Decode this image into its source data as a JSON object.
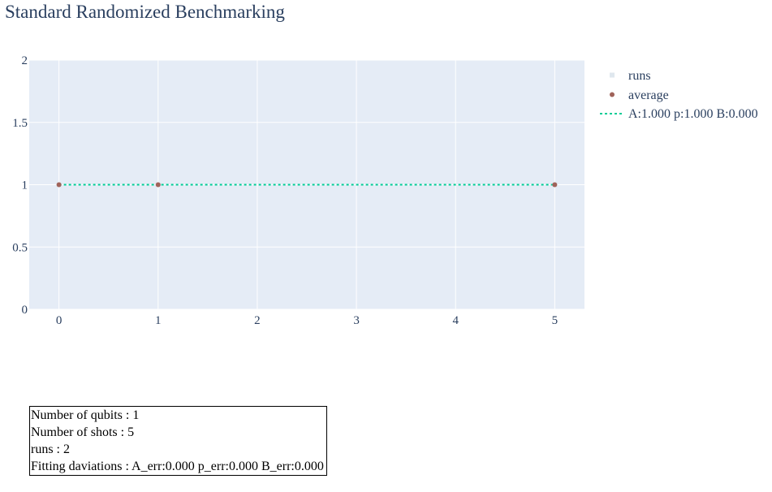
{
  "title": "Standard Randomized Benchmarking",
  "chart_data": {
    "type": "scatter",
    "title": "Standard Randomized Benchmarking",
    "xlabel": "",
    "ylabel": "",
    "xlim": [
      -0.3,
      5.3
    ],
    "ylim": [
      0,
      2
    ],
    "x_ticks": [
      0,
      1,
      2,
      3,
      4,
      5
    ],
    "y_ticks": [
      0,
      0.5,
      1,
      1.5,
      2
    ],
    "y_tick_labels": [
      "0",
      "0.5",
      "1",
      "1.5",
      "2"
    ],
    "grid": true,
    "legend_position": "top-right outside",
    "series": [
      {
        "name": "runs",
        "mode": "markers",
        "color": "#dfe7ee",
        "x": [
          0,
          0,
          1,
          1,
          5,
          5
        ],
        "y": [
          1,
          1,
          1,
          1,
          1,
          1
        ]
      },
      {
        "name": "average",
        "mode": "markers",
        "color": "#a0635a",
        "x": [
          0,
          1,
          5
        ],
        "y": [
          1,
          1,
          1
        ]
      },
      {
        "name": "A:1.000 p:1.000 B:0.000",
        "mode": "lines",
        "dash": "dot",
        "color": "#00cc96",
        "x": [
          0,
          1,
          5
        ],
        "y": [
          1,
          1,
          1
        ]
      }
    ],
    "colors": {
      "plot_bg": "#e5ecf6",
      "grid": "#ffffff",
      "text": "#2a3f5f"
    }
  },
  "info_box": {
    "lines": [
      "Number of qubits : 1",
      "Number of shots : 5",
      "runs : 2",
      "Fitting daviations : A_err:0.000 p_err:0.000 B_err:0.000"
    ]
  }
}
